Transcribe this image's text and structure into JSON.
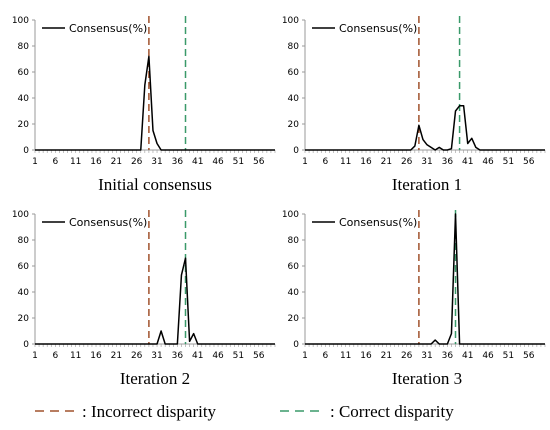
{
  "chart_data": [
    {
      "type": "line",
      "caption": "Initial consensus",
      "legend_label": "Consensus(%)",
      "legend_placement": "top-left",
      "x_tick_labels": [
        "1",
        "6",
        "11",
        "16",
        "21",
        "26",
        "31",
        "36",
        "41",
        "46",
        "51",
        "56"
      ],
      "xlim": [
        1,
        60
      ],
      "ylim": [
        0,
        100
      ],
      "y_ticks": [
        0,
        20,
        40,
        60,
        80,
        100
      ],
      "grid": false,
      "incorrect_disparity_x": 29,
      "correct_disparity_x": 38,
      "series": [
        {
          "name": "Consensus(%)",
          "x": [
            1,
            27,
            28,
            29,
            30,
            31,
            32,
            60
          ],
          "y": [
            0,
            0,
            50,
            72,
            15,
            5,
            0,
            0
          ]
        }
      ]
    },
    {
      "type": "line",
      "caption": "Iteration 1",
      "legend_label": "Consensus(%)",
      "legend_placement": "top-left",
      "x_tick_labels": [
        "1",
        "6",
        "11",
        "16",
        "21",
        "26",
        "31",
        "36",
        "41",
        "46",
        "51",
        "56"
      ],
      "xlim": [
        1,
        60
      ],
      "ylim": [
        0,
        100
      ],
      "y_ticks": [
        0,
        20,
        40,
        60,
        80,
        100
      ],
      "grid": false,
      "incorrect_disparity_x": 29,
      "correct_disparity_x": 39,
      "series": [
        {
          "name": "Consensus(%)",
          "x": [
            1,
            27,
            28,
            29,
            30,
            31,
            32,
            33,
            34,
            35,
            36,
            37,
            38,
            39,
            40,
            41,
            42,
            43,
            44,
            60
          ],
          "y": [
            0,
            0,
            3,
            19,
            8,
            4,
            2,
            0,
            2,
            0,
            0,
            1,
            30,
            34,
            34,
            5,
            9,
            2,
            0,
            0
          ]
        }
      ]
    },
    {
      "type": "line",
      "caption": "Iteration 2",
      "legend_label": "Consensus(%)",
      "legend_placement": "top-left",
      "x_tick_labels": [
        "1",
        "6",
        "11",
        "16",
        "21",
        "26",
        "31",
        "36",
        "41",
        "46",
        "51",
        "56"
      ],
      "xlim": [
        1,
        60
      ],
      "ylim": [
        0,
        100
      ],
      "y_ticks": [
        0,
        20,
        40,
        60,
        80,
        100
      ],
      "grid": false,
      "incorrect_disparity_x": 29,
      "correct_disparity_x": 38,
      "series": [
        {
          "name": "Consensus(%)",
          "x": [
            1,
            31,
            32,
            33,
            34,
            35,
            36,
            37,
            38,
            39,
            40,
            41,
            42,
            60
          ],
          "y": [
            0,
            0,
            10,
            0,
            0,
            0,
            0,
            53,
            66,
            2,
            8,
            0,
            0,
            0
          ]
        }
      ]
    },
    {
      "type": "line",
      "caption": "Iteration 3",
      "legend_label": "Consensus(%)",
      "legend_placement": "top-left",
      "x_tick_labels": [
        "1",
        "6",
        "11",
        "16",
        "21",
        "26",
        "31",
        "36",
        "41",
        "46",
        "51",
        "56"
      ],
      "xlim": [
        1,
        60
      ],
      "ylim": [
        0,
        100
      ],
      "y_ticks": [
        0,
        20,
        40,
        60,
        80,
        100
      ],
      "grid": false,
      "incorrect_disparity_x": 29,
      "correct_disparity_x": 38,
      "series": [
        {
          "name": "Consensus(%)",
          "x": [
            1,
            32,
            33,
            34,
            35,
            36,
            37,
            38,
            39,
            40,
            41,
            60
          ],
          "y": [
            0,
            0,
            3,
            0,
            0,
            0,
            8,
            100,
            0,
            0,
            0,
            0
          ]
        }
      ]
    }
  ],
  "legend": {
    "incorrect_label": ": Incorrect disparity",
    "correct_label": ": Correct disparity",
    "incorrect_color": "#a0522d",
    "correct_color": "#3a9a6a"
  },
  "colors": {
    "line": "#000000",
    "axis": "#999999",
    "incorrect": "#a0522d",
    "correct": "#3a9a6a"
  }
}
